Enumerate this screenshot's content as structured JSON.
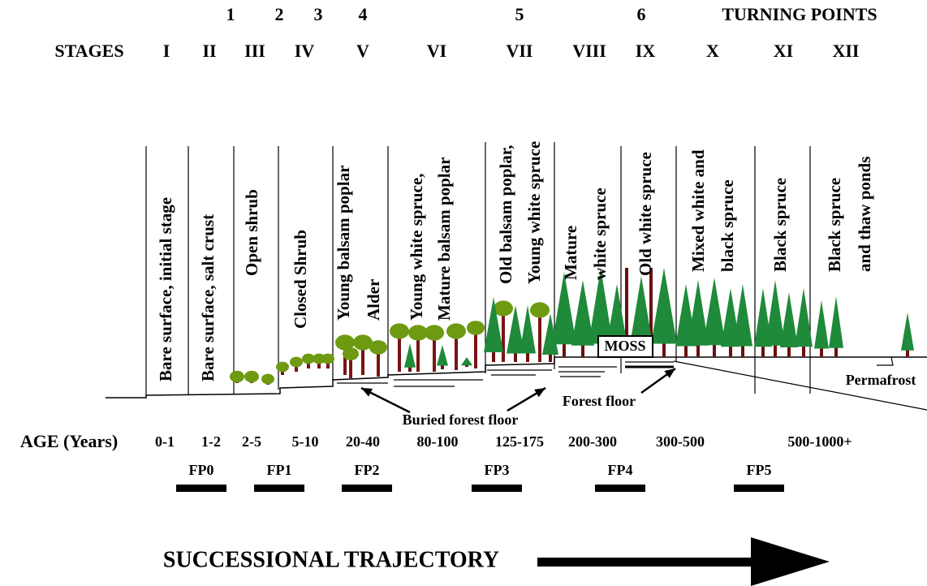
{
  "turning_points": {
    "label": "TURNING POINTS",
    "items": [
      "1",
      "2",
      "3",
      "4",
      "5",
      "6"
    ]
  },
  "stages": {
    "label": "STAGES",
    "items": [
      "I",
      "II",
      "III",
      "IV",
      "V",
      "VI",
      "VII",
      "VIII",
      "IX",
      "X",
      "XI",
      "XII"
    ]
  },
  "columns": [
    [
      "Bare surface, initial stage"
    ],
    [
      "Bare surface, salt crust"
    ],
    [
      "Open shrub"
    ],
    [
      "Closed Shrub"
    ],
    [
      "Young balsam poplar",
      "Alder"
    ],
    [
      "Young white spruce,",
      "Mature balsam poplar"
    ],
    [
      "Old balsam poplar,",
      "Young white spruce"
    ],
    [
      "Mature",
      "white spruce"
    ],
    [
      "Old white spruce"
    ],
    [
      "Mixed white and",
      "black spruce"
    ],
    [
      "Black spruce"
    ],
    [
      "Black spruce",
      "and thaw ponds"
    ]
  ],
  "annotations": {
    "moss": "MOSS",
    "permafrost": "Permafrost",
    "forest_floor": "Forest floor",
    "buried_forest_floor": "Buried forest floor"
  },
  "age": {
    "label": "AGE (Years)",
    "items": [
      "0-1",
      "1-2",
      "2-5",
      "5-10",
      "20-40",
      "80-100",
      "125-175",
      "200-300",
      "300-500",
      "500-1000+"
    ]
  },
  "forest_phases": [
    "FP0",
    "FP1",
    "FP2",
    "FP3",
    "FP4",
    "FP5"
  ],
  "trajectory": "SUCCESSIONAL TRAJECTORY"
}
